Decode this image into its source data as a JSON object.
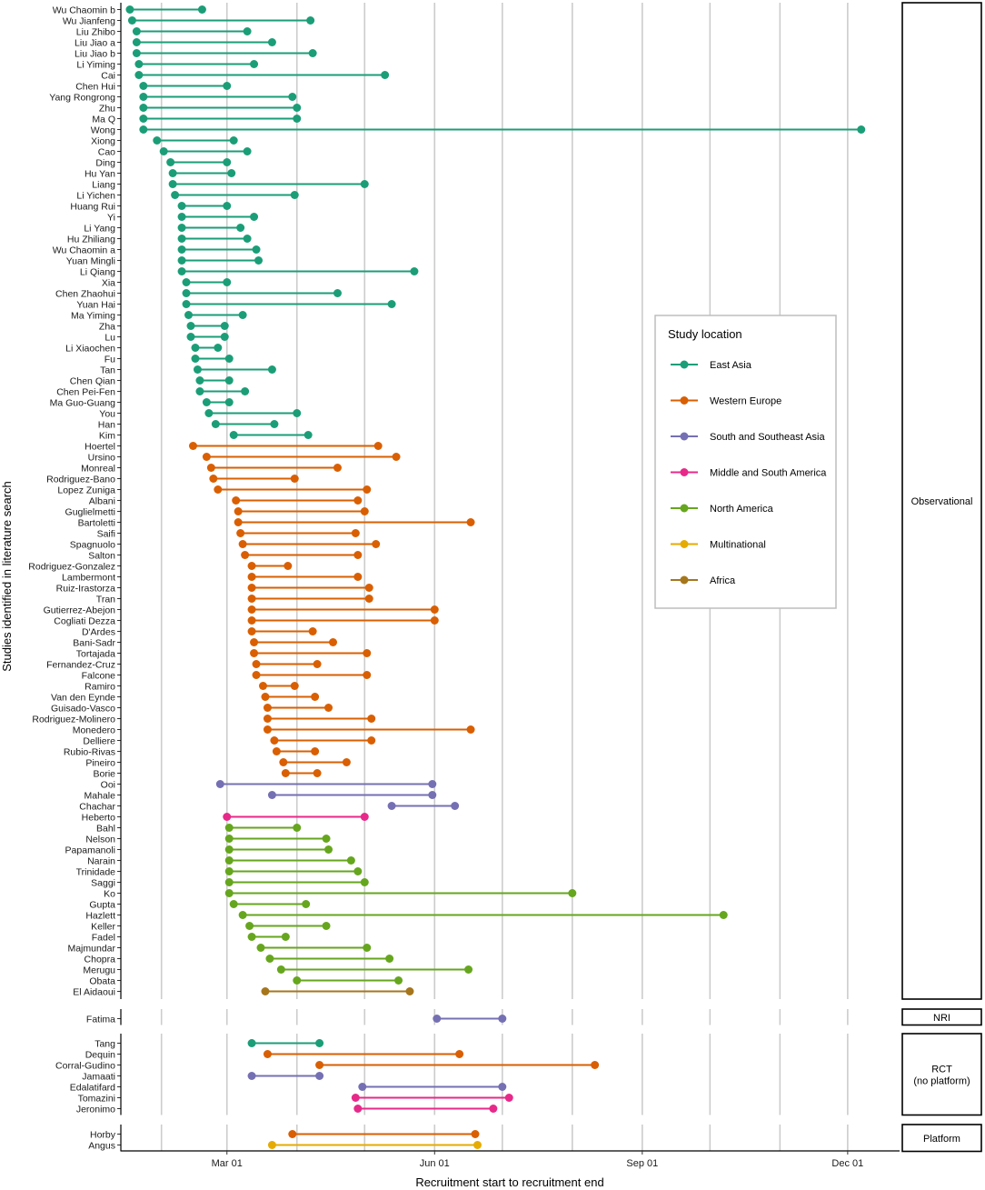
{
  "chart_data": {
    "type": "dumbbell",
    "xlabel": "Recruitment start to recruitment end",
    "ylabel": "Studies identified in literature search",
    "x_ticks": [
      "Mar 01",
      "Jun 01",
      "Sep 01",
      "Dec 01"
    ],
    "x_tick_days": [
      60,
      152,
      244,
      335
    ],
    "xlim_days": [
      13,
      358
    ],
    "day_unit": "day of year 2020",
    "legend_title": "Study location",
    "legend_position": "right",
    "region_colors": {
      "East Asia": "#1b9e77",
      "Western Europe": "#d95f02",
      "South and Southeast Asia": "#7570b3",
      "Middle and South America": "#e7298a",
      "North America": "#66a61e",
      "Multinational": "#e6ab02",
      "Africa": "#a6761d"
    },
    "legend_order": [
      "East Asia",
      "Western Europe",
      "South and Southeast Asia",
      "Middle and South America",
      "North America",
      "Multinational",
      "Africa"
    ],
    "panels": [
      {
        "label": "Observational",
        "studies": [
          {
            "name": "Wu Chaomin b",
            "region": "East Asia",
            "start": 17,
            "end": 49
          },
          {
            "name": "Wu Jianfeng",
            "region": "East Asia",
            "start": 18,
            "end": 97
          },
          {
            "name": "Liu Zhibo",
            "region": "East Asia",
            "start": 20,
            "end": 69
          },
          {
            "name": "Liu Jiao a",
            "region": "East Asia",
            "start": 20,
            "end": 80
          },
          {
            "name": "Liu Jiao b",
            "region": "East Asia",
            "start": 20,
            "end": 98
          },
          {
            "name": "Li Yiming",
            "region": "East Asia",
            "start": 21,
            "end": 72
          },
          {
            "name": "Cai",
            "region": "East Asia",
            "start": 21,
            "end": 130
          },
          {
            "name": "Chen Hui",
            "region": "East Asia",
            "start": 23,
            "end": 60
          },
          {
            "name": "Yang Rongrong",
            "region": "East Asia",
            "start": 23,
            "end": 89
          },
          {
            "name": "Zhu",
            "region": "East Asia",
            "start": 23,
            "end": 91
          },
          {
            "name": "Ma Q",
            "region": "East Asia",
            "start": 23,
            "end": 91
          },
          {
            "name": "Wong",
            "region": "East Asia",
            "start": 23,
            "end": 341
          },
          {
            "name": "Xiong",
            "region": "East Asia",
            "start": 29,
            "end": 63
          },
          {
            "name": "Cao",
            "region": "East Asia",
            "start": 32,
            "end": 69
          },
          {
            "name": "Ding",
            "region": "East Asia",
            "start": 35,
            "end": 60
          },
          {
            "name": "Hu Yan",
            "region": "East Asia",
            "start": 36,
            "end": 62
          },
          {
            "name": "Liang",
            "region": "East Asia",
            "start": 36,
            "end": 121
          },
          {
            "name": "Li Yichen",
            "region": "East Asia",
            "start": 37,
            "end": 90
          },
          {
            "name": "Huang Rui",
            "region": "East Asia",
            "start": 40,
            "end": 60
          },
          {
            "name": "Yi",
            "region": "East Asia",
            "start": 40,
            "end": 72
          },
          {
            "name": "Li Yang",
            "region": "East Asia",
            "start": 40,
            "end": 66
          },
          {
            "name": "Hu Zhiliang",
            "region": "East Asia",
            "start": 40,
            "end": 69
          },
          {
            "name": "Wu Chaomin a",
            "region": "East Asia",
            "start": 40,
            "end": 73
          },
          {
            "name": "Yuan Mingli",
            "region": "East Asia",
            "start": 40,
            "end": 74
          },
          {
            "name": "Li Qiang",
            "region": "East Asia",
            "start": 40,
            "end": 143
          },
          {
            "name": "Xia",
            "region": "East Asia",
            "start": 42,
            "end": 60
          },
          {
            "name": "Chen Zhaohui",
            "region": "East Asia",
            "start": 42,
            "end": 109
          },
          {
            "name": "Yuan Hai",
            "region": "East Asia",
            "start": 42,
            "end": 133
          },
          {
            "name": "Ma Yiming",
            "region": "East Asia",
            "start": 43,
            "end": 67
          },
          {
            "name": "Zha",
            "region": "East Asia",
            "start": 44,
            "end": 59
          },
          {
            "name": "Lu",
            "region": "East Asia",
            "start": 44,
            "end": 59
          },
          {
            "name": "Li Xiaochen",
            "region": "East Asia",
            "start": 46,
            "end": 56
          },
          {
            "name": "Fu",
            "region": "East Asia",
            "start": 46,
            "end": 61
          },
          {
            "name": "Tan",
            "region": "East Asia",
            "start": 47,
            "end": 80
          },
          {
            "name": "Chen Qian",
            "region": "East Asia",
            "start": 48,
            "end": 61
          },
          {
            "name": "Chen Pei-Fen",
            "region": "East Asia",
            "start": 48,
            "end": 68
          },
          {
            "name": "Ma Guo-Guang",
            "region": "East Asia",
            "start": 51,
            "end": 61
          },
          {
            "name": "You",
            "region": "East Asia",
            "start": 52,
            "end": 91
          },
          {
            "name": "Han",
            "region": "East Asia",
            "start": 55,
            "end": 81
          },
          {
            "name": "Kim",
            "region": "East Asia",
            "start": 63,
            "end": 96
          },
          {
            "name": "Hoertel",
            "region": "Western Europe",
            "start": 45,
            "end": 127
          },
          {
            "name": "Ursino",
            "region": "Western Europe",
            "start": 51,
            "end": 135
          },
          {
            "name": "Monreal",
            "region": "Western Europe",
            "start": 53,
            "end": 109
          },
          {
            "name": "Rodriguez-Bano",
            "region": "Western Europe",
            "start": 54,
            "end": 90
          },
          {
            "name": "Lopez Zuniga",
            "region": "Western Europe",
            "start": 56,
            "end": 122
          },
          {
            "name": "Albani",
            "region": "Western Europe",
            "start": 64,
            "end": 118
          },
          {
            "name": "Guglielmetti",
            "region": "Western Europe",
            "start": 65,
            "end": 121
          },
          {
            "name": "Bartoletti",
            "region": "Western Europe",
            "start": 65,
            "end": 168
          },
          {
            "name": "Saifi",
            "region": "Western Europe",
            "start": 66,
            "end": 117
          },
          {
            "name": "Spagnuolo",
            "region": "Western Europe",
            "start": 67,
            "end": 126
          },
          {
            "name": "Salton",
            "region": "Western Europe",
            "start": 68,
            "end": 118
          },
          {
            "name": "Rodriguez-Gonzalez",
            "region": "Western Europe",
            "start": 71,
            "end": 87
          },
          {
            "name": "Lambermont",
            "region": "Western Europe",
            "start": 71,
            "end": 118
          },
          {
            "name": "Ruiz-Irastorza",
            "region": "Western Europe",
            "start": 71,
            "end": 123
          },
          {
            "name": "Tran",
            "region": "Western Europe",
            "start": 71,
            "end": 123
          },
          {
            "name": "Gutierrez-Abejon",
            "region": "Western Europe",
            "start": 71,
            "end": 152
          },
          {
            "name": "Cogliati Dezza",
            "region": "Western Europe",
            "start": 71,
            "end": 152
          },
          {
            "name": "D'Ardes",
            "region": "Western Europe",
            "start": 71,
            "end": 98
          },
          {
            "name": "Bani-Sadr",
            "region": "Western Europe",
            "start": 72,
            "end": 107
          },
          {
            "name": "Tortajada",
            "region": "Western Europe",
            "start": 72,
            "end": 122
          },
          {
            "name": "Fernandez-Cruz",
            "region": "Western Europe",
            "start": 73,
            "end": 100
          },
          {
            "name": "Falcone",
            "region": "Western Europe",
            "start": 73,
            "end": 122
          },
          {
            "name": "Ramiro",
            "region": "Western Europe",
            "start": 76,
            "end": 90
          },
          {
            "name": "Van den Eynde",
            "region": "Western Europe",
            "start": 77,
            "end": 99
          },
          {
            "name": "Guisado-Vasco",
            "region": "Western Europe",
            "start": 78,
            "end": 105
          },
          {
            "name": "Rodriguez-Molinero",
            "region": "Western Europe",
            "start": 78,
            "end": 124
          },
          {
            "name": "Monedero",
            "region": "Western Europe",
            "start": 78,
            "end": 168
          },
          {
            "name": "Delliere",
            "region": "Western Europe",
            "start": 81,
            "end": 124
          },
          {
            "name": "Rubio-Rivas",
            "region": "Western Europe",
            "start": 82,
            "end": 99
          },
          {
            "name": "Pineiro",
            "region": "Western Europe",
            "start": 85,
            "end": 113
          },
          {
            "name": "Borie",
            "region": "Western Europe",
            "start": 86,
            "end": 100
          },
          {
            "name": "Ooi",
            "region": "South and Southeast Asia",
            "start": 57,
            "end": 151
          },
          {
            "name": "Mahale",
            "region": "South and Southeast Asia",
            "start": 80,
            "end": 151
          },
          {
            "name": "Chachar",
            "region": "South and Southeast Asia",
            "start": 133,
            "end": 161
          },
          {
            "name": "Heberto",
            "region": "Middle and South America",
            "start": 60,
            "end": 121
          },
          {
            "name": "Bahl",
            "region": "North America",
            "start": 61,
            "end": 91
          },
          {
            "name": "Nelson",
            "region": "North America",
            "start": 61,
            "end": 104
          },
          {
            "name": "Papamanoli",
            "region": "North America",
            "start": 61,
            "end": 105
          },
          {
            "name": "Narain",
            "region": "North America",
            "start": 61,
            "end": 115
          },
          {
            "name": "Trinidade",
            "region": "North America",
            "start": 61,
            "end": 118
          },
          {
            "name": "Saggi",
            "region": "North America",
            "start": 61,
            "end": 121
          },
          {
            "name": "Ko",
            "region": "North America",
            "start": 61,
            "end": 213
          },
          {
            "name": "Gupta",
            "region": "North America",
            "start": 63,
            "end": 95
          },
          {
            "name": "Hazlett",
            "region": "North America",
            "start": 67,
            "end": 280
          },
          {
            "name": "Keller",
            "region": "North America",
            "start": 70,
            "end": 104
          },
          {
            "name": "Fadel",
            "region": "North America",
            "start": 71,
            "end": 86
          },
          {
            "name": "Majmundar",
            "region": "North America",
            "start": 75,
            "end": 122
          },
          {
            "name": "Chopra",
            "region": "North America",
            "start": 79,
            "end": 132
          },
          {
            "name": "Merugu",
            "region": "North America",
            "start": 84,
            "end": 167
          },
          {
            "name": "Obata",
            "region": "North America",
            "start": 91,
            "end": 136
          },
          {
            "name": "El Aidaoui",
            "region": "Africa",
            "start": 77,
            "end": 141
          }
        ]
      },
      {
        "label": "NRI",
        "studies": [
          {
            "name": "Fatima",
            "region": "South and Southeast Asia",
            "start": 153,
            "end": 182
          }
        ]
      },
      {
        "label": "RCT\n(no platform)",
        "studies": [
          {
            "name": "Tang",
            "region": "East Asia",
            "start": 71,
            "end": 101
          },
          {
            "name": "Dequin",
            "region": "Western Europe",
            "start": 78,
            "end": 163
          },
          {
            "name": "Corral-Gudino",
            "region": "Western Europe",
            "start": 101,
            "end": 223
          },
          {
            "name": "Jamaati",
            "region": "South and Southeast Asia",
            "start": 71,
            "end": 101
          },
          {
            "name": "Edalatifard",
            "region": "South and Southeast Asia",
            "start": 120,
            "end": 182
          },
          {
            "name": "Tomazini",
            "region": "Middle and South America",
            "start": 117,
            "end": 185
          },
          {
            "name": "Jeronimo",
            "region": "Middle and South America",
            "start": 118,
            "end": 178
          }
        ]
      },
      {
        "label": "Platform",
        "studies": [
          {
            "name": "Horby",
            "region": "Western Europe",
            "start": 89,
            "end": 170
          },
          {
            "name": "Angus",
            "region": "Multinational",
            "start": 80,
            "end": 171
          }
        ]
      }
    ]
  }
}
